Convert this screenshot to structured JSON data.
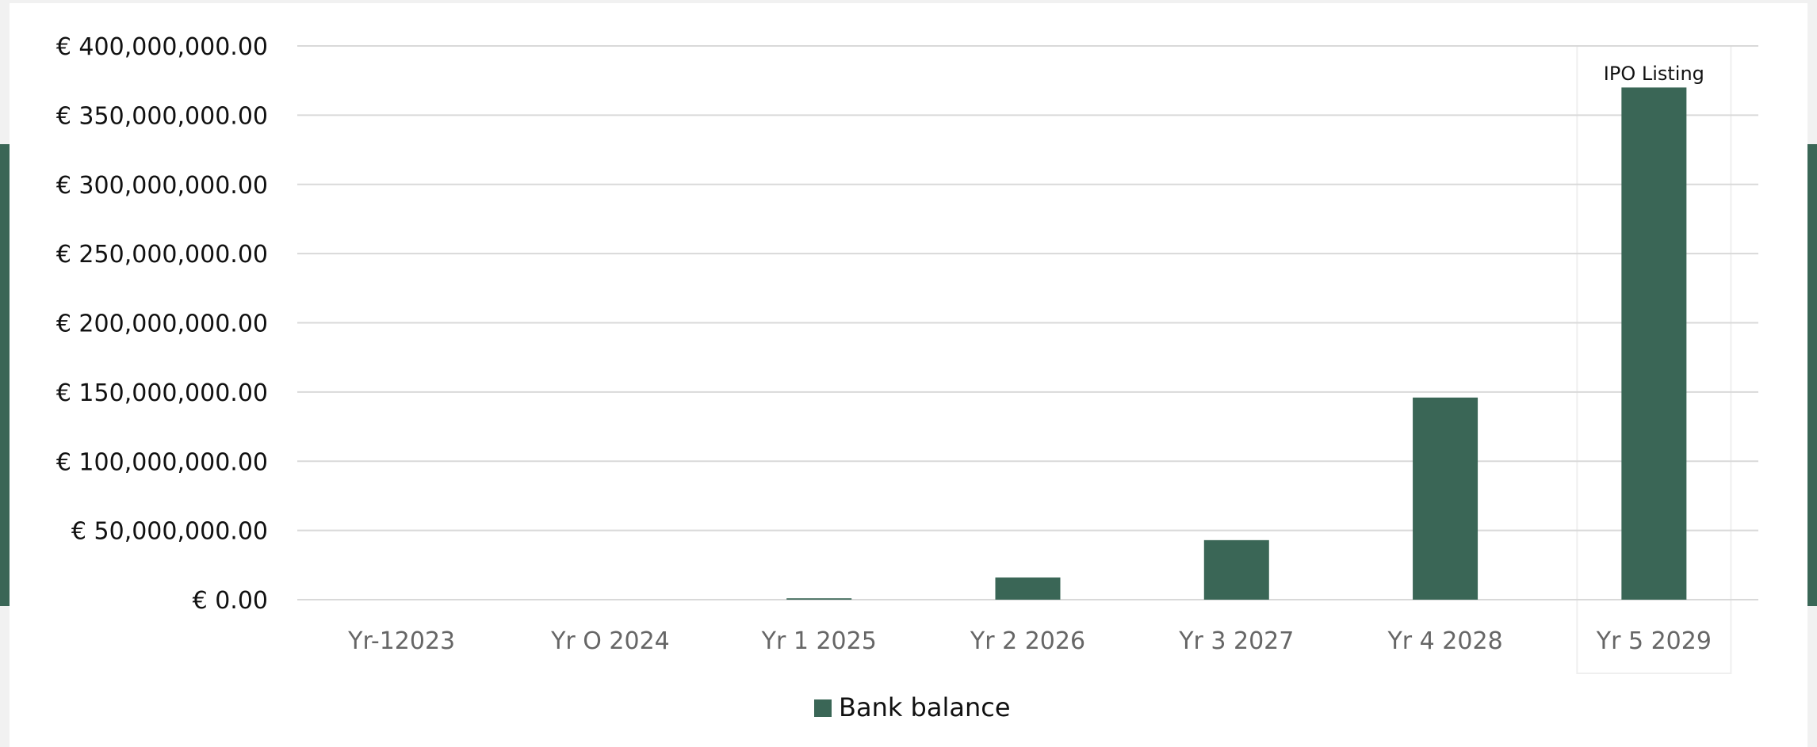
{
  "chart_data": {
    "type": "bar",
    "categories": [
      "Yr-12023",
      "Yr O 2024",
      "Yr 1 2025",
      "Yr 2 2026",
      "Yr 3 2027",
      "Yr 4 2028",
      "Yr 5 2029"
    ],
    "series": [
      {
        "name": "Bank balance",
        "values": [
          0,
          0,
          1000000,
          16000000,
          43000000,
          146000000,
          370000000
        ]
      }
    ],
    "yticks": [
      "€ 0.00",
      "€ 50,000,000.00",
      "€ 100,000,000.00",
      "€ 150,000,000.00",
      "€ 200,000,000.00",
      "€ 250,000,000.00",
      "€ 300,000,000.00",
      "€ 350,000,000.00",
      "€ 400,000,000.00"
    ],
    "ylim": [
      0,
      400000000
    ],
    "grid": true,
    "legend_position": "bottom-center",
    "annotation": {
      "text": "IPO Listing",
      "category": "Yr 5 2029"
    },
    "colors": {
      "bar": "#3a6656",
      "grid": "#d9d9d9",
      "background_band": "#3a6656"
    }
  }
}
